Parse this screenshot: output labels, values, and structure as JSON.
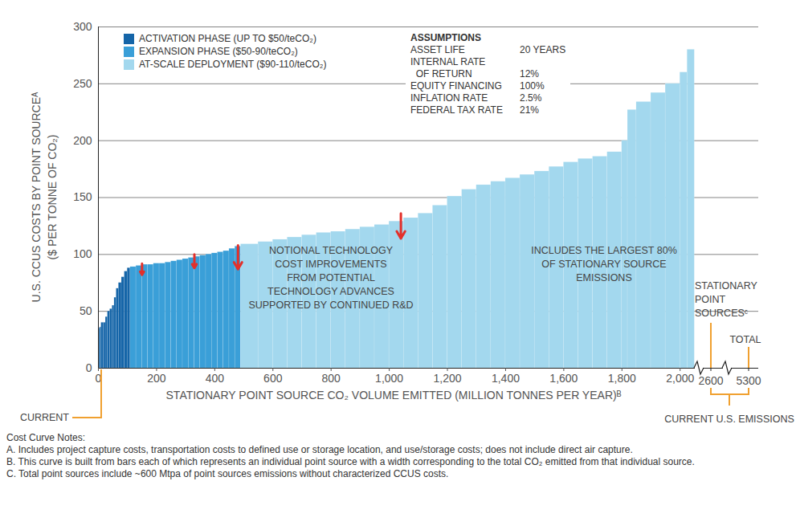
{
  "chart_data": {
    "type": "bar",
    "y_label": [
      "U.S. CCUS COSTS BY POINT SOURCEᴬ",
      "($ PER TONNE OF CO₂)"
    ],
    "x_label": "STATIONARY POINT SOURCE CO₂ VOLUME EMITTED (MILLION TONNES PER YEAR)ᴮ",
    "xlim": [
      0,
      2270
    ],
    "xticks": [
      0,
      200,
      400,
      600,
      800,
      1000,
      1200,
      1400,
      1600,
      1800,
      2000
    ],
    "ylim": [
      0,
      300
    ],
    "yticks": [
      0,
      50,
      100,
      150,
      200,
      250,
      300
    ],
    "grid": true,
    "legend": "top-left",
    "series": [
      {
        "name": "ACTIVATION PHASE (UP TO $50/teCO₂)",
        "color": "#1565a8",
        "bins": [
          0,
          5,
          10,
          18,
          25,
          32,
          40,
          48,
          55,
          62,
          70,
          80,
          90,
          100,
          110
        ],
        "values": [
          35,
          36,
          40,
          40,
          45,
          50,
          52,
          55,
          62,
          70,
          75,
          80,
          85,
          88
        ]
      },
      {
        "name": "EXPANSION PHASE ($50-90/teCO₂)",
        "color": "#3a9fd8",
        "bins": [
          110,
          130,
          150,
          170,
          190,
          210,
          230,
          250,
          270,
          290,
          310,
          330,
          350,
          370,
          390,
          410,
          430,
          450,
          470,
          490
        ],
        "values": [
          89,
          90,
          91,
          91,
          92,
          92,
          93,
          94,
          95,
          96,
          97,
          98,
          99,
          100,
          101,
          102,
          103,
          105,
          107
        ]
      },
      {
        "name": "AT-SCALE DEPLOYMENT ($90-110/teCO₂)",
        "color": "#a3d8ee",
        "bins": [
          490,
          550,
          600,
          650,
          700,
          750,
          800,
          850,
          900,
          950,
          1000,
          1050,
          1100,
          1150,
          1200,
          1250,
          1300,
          1350,
          1400,
          1450,
          1500,
          1550,
          1600,
          1650,
          1700,
          1750,
          1800,
          1820,
          1850,
          1900,
          1950,
          2000,
          2025,
          2050
        ],
        "values": [
          109,
          111,
          113,
          115,
          117,
          119,
          120,
          122,
          124,
          126,
          129,
          132,
          136,
          143,
          151,
          157,
          161,
          164,
          167,
          170,
          173,
          177,
          181,
          184,
          186,
          190,
          200,
          227,
          234,
          242,
          250,
          260,
          280
        ]
      }
    ],
    "arrows": {
      "color": "#e3302a",
      "items": [
        {
          "x": 150,
          "from": 92,
          "to": 82
        },
        {
          "x": 330,
          "from": 100,
          "to": 88
        },
        {
          "x": 480,
          "from": 108,
          "to": 87
        },
        {
          "x": 1040,
          "from": 136,
          "to": 114
        }
      ]
    },
    "assumptions": {
      "title": "ASSUMPTIONS",
      "rows": [
        [
          "ASSET LIFE",
          "20 YEARS"
        ],
        [
          "INTERNAL RATE\n  OF RETURN",
          "12%"
        ],
        [
          "EQUITY FINANCING",
          "100%"
        ],
        [
          "INFLATION RATE",
          "2.5%"
        ],
        [
          "FEDERAL TAX RATE",
          "21%"
        ]
      ]
    },
    "annotations": {
      "rd": [
        "NOTIONAL TECHNOLOGY",
        "COST IMPROVEMENTS",
        "FROM POTENTIAL",
        "TECHNOLOGY ADVANCES",
        "SUPPORTED BY CONTINUED R&D"
      ],
      "largest": [
        "INCLUDES THE LARGEST 80%",
        "OF STATIONARY SOURCE",
        "EMISSIONS"
      ],
      "stationary": [
        "STATIONARY",
        "POINT",
        "SOURCESᶜ"
      ],
      "total": "TOTAL",
      "break_ticks": [
        "2600",
        "5300"
      ],
      "current": "CURRENT",
      "current_us": "CURRENT U.S. EMISSIONS"
    },
    "notes": {
      "title": "Cost Curve Notes:",
      "items": [
        "A. Includes project capture costs, transportation costs to defined use or storage location, and use/storage costs; does not include direct air capture.",
        "B. This curve is built from bars each of which represents an individual point source with a width corresponding to the total CO₂ emitted from that individual source.",
        "C. Total point sources include ~600 Mtpa of point sources emissions without characterized CCUS costs."
      ]
    }
  }
}
